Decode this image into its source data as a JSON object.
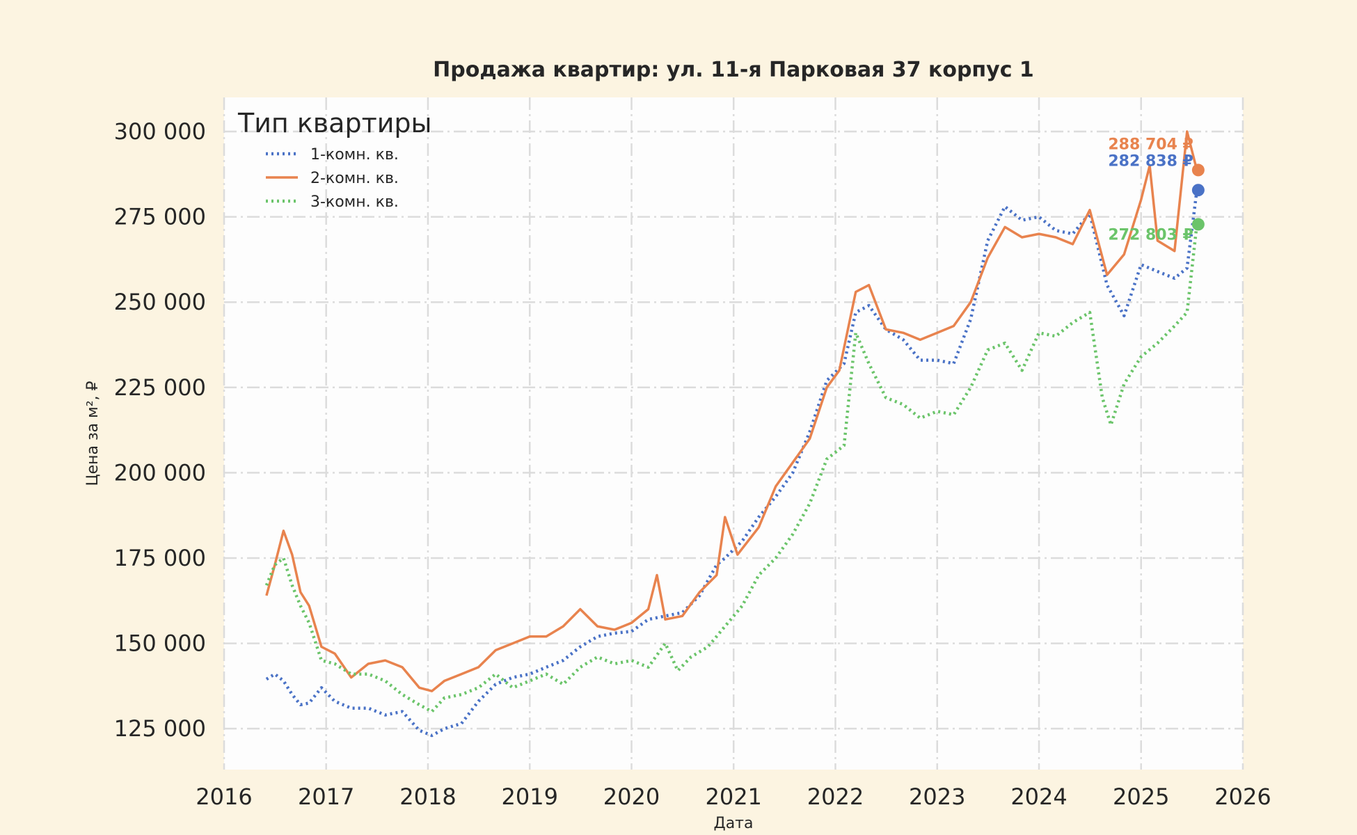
{
  "chart_data": {
    "type": "line",
    "title": "Продажа квартир: ул. 11-я Парковая 37 корпус 1",
    "xlabel": "Дата",
    "ylabel": "Цена за м², ₽",
    "xlim": [
      "2016-01-01",
      "2026-01-01"
    ],
    "ylim": [
      113000,
      310000
    ],
    "x_ticks": [
      "2016",
      "2017",
      "2018",
      "2019",
      "2020",
      "2021",
      "2022",
      "2023",
      "2024",
      "2025",
      "2026"
    ],
    "y_ticks": [
      125000,
      150000,
      175000,
      200000,
      225000,
      250000,
      275000,
      300000
    ],
    "y_tick_labels": [
      "125 000",
      "150 000",
      "175 000",
      "200 000",
      "225 000",
      "250 000",
      "275 000",
      "300 000"
    ],
    "grid": true,
    "legend": {
      "title": "Тип квартиры",
      "placement": "top-left"
    },
    "colors": {
      "plot_bg": "#fdfdfd",
      "page_bg": "#fcf4e1",
      "grid": "#dcdcdc"
    },
    "series": [
      {
        "name": "1-комн. кв.",
        "color": "#4a72c6",
        "style": "dotted",
        "end_value": 282838,
        "end_label": "282 838 ₽",
        "points": [
          [
            "2016-06-01",
            139500
          ],
          [
            "2016-07-01",
            141000
          ],
          [
            "2016-08-01",
            139000
          ],
          [
            "2016-09-01",
            135000
          ],
          [
            "2016-10-01",
            132000
          ],
          [
            "2016-11-01",
            132500
          ],
          [
            "2016-12-15",
            137000
          ],
          [
            "2017-02-01",
            133000
          ],
          [
            "2017-04-01",
            131000
          ],
          [
            "2017-06-01",
            131000
          ],
          [
            "2017-08-01",
            129000
          ],
          [
            "2017-10-01",
            130000
          ],
          [
            "2017-12-01",
            124500
          ],
          [
            "2018-01-15",
            123000
          ],
          [
            "2018-03-01",
            125000
          ],
          [
            "2018-05-01",
            126500
          ],
          [
            "2018-07-01",
            133000
          ],
          [
            "2018-09-01",
            138000
          ],
          [
            "2018-11-01",
            140000
          ],
          [
            "2019-01-01",
            141000
          ],
          [
            "2019-03-01",
            143000
          ],
          [
            "2019-05-01",
            145000
          ],
          [
            "2019-07-01",
            149000
          ],
          [
            "2019-09-01",
            152000
          ],
          [
            "2019-11-01",
            153000
          ],
          [
            "2020-01-01",
            153500
          ],
          [
            "2020-03-01",
            157000
          ],
          [
            "2020-05-01",
            158000
          ],
          [
            "2020-07-01",
            159000
          ],
          [
            "2020-09-01",
            164000
          ],
          [
            "2020-11-01",
            173000
          ],
          [
            "2020-12-01",
            175000
          ],
          [
            "2021-02-01",
            180000
          ],
          [
            "2021-04-01",
            187000
          ],
          [
            "2021-06-01",
            193000
          ],
          [
            "2021-08-01",
            200000
          ],
          [
            "2021-10-01",
            212000
          ],
          [
            "2021-12-01",
            227000
          ],
          [
            "2022-02-01",
            232000
          ],
          [
            "2022-03-15",
            247000
          ],
          [
            "2022-05-01",
            249000
          ],
          [
            "2022-07-01",
            242000
          ],
          [
            "2022-09-01",
            239000
          ],
          [
            "2022-11-01",
            233000
          ],
          [
            "2023-01-01",
            233000
          ],
          [
            "2023-03-01",
            232000
          ],
          [
            "2023-05-01",
            245000
          ],
          [
            "2023-07-01",
            268000
          ],
          [
            "2023-09-01",
            278000
          ],
          [
            "2023-11-01",
            274000
          ],
          [
            "2024-01-01",
            275000
          ],
          [
            "2024-03-01",
            271000
          ],
          [
            "2024-05-01",
            270000
          ],
          [
            "2024-07-01",
            276000
          ],
          [
            "2024-09-01",
            255000
          ],
          [
            "2024-11-01",
            246000
          ],
          [
            "2025-01-01",
            261000
          ],
          [
            "2025-03-01",
            259000
          ],
          [
            "2025-05-01",
            257000
          ],
          [
            "2025-06-15",
            260000
          ],
          [
            "2025-07-20",
            282838
          ]
        ]
      },
      {
        "name": "2-комн. кв.",
        "color": "#e8834e",
        "style": "solid",
        "end_value": 288704,
        "end_label": "288 704 ₽",
        "points": [
          [
            "2016-06-01",
            164000
          ],
          [
            "2016-07-01",
            173000
          ],
          [
            "2016-08-01",
            183000
          ],
          [
            "2016-09-01",
            176000
          ],
          [
            "2016-10-01",
            165000
          ],
          [
            "2016-11-01",
            161000
          ],
          [
            "2016-12-15",
            149000
          ],
          [
            "2017-02-01",
            147000
          ],
          [
            "2017-04-01",
            140000
          ],
          [
            "2017-06-01",
            144000
          ],
          [
            "2017-08-01",
            145000
          ],
          [
            "2017-10-01",
            143000
          ],
          [
            "2017-12-01",
            137000
          ],
          [
            "2018-01-15",
            136000
          ],
          [
            "2018-03-01",
            139000
          ],
          [
            "2018-05-01",
            141000
          ],
          [
            "2018-07-01",
            143000
          ],
          [
            "2018-09-01",
            148000
          ],
          [
            "2018-11-01",
            150000
          ],
          [
            "2019-01-01",
            152000
          ],
          [
            "2019-03-01",
            152000
          ],
          [
            "2019-05-01",
            155000
          ],
          [
            "2019-07-01",
            160000
          ],
          [
            "2019-09-01",
            155000
          ],
          [
            "2019-11-01",
            154000
          ],
          [
            "2020-01-01",
            156000
          ],
          [
            "2020-03-01",
            160000
          ],
          [
            "2020-04-01",
            170000
          ],
          [
            "2020-05-01",
            157000
          ],
          [
            "2020-07-01",
            158000
          ],
          [
            "2020-09-01",
            165000
          ],
          [
            "2020-11-01",
            170000
          ],
          [
            "2020-12-01",
            187000
          ],
          [
            "2021-01-15",
            176000
          ],
          [
            "2021-04-01",
            184000
          ],
          [
            "2021-06-01",
            196000
          ],
          [
            "2021-08-01",
            203000
          ],
          [
            "2021-10-01",
            210000
          ],
          [
            "2021-12-01",
            225000
          ],
          [
            "2022-01-15",
            230000
          ],
          [
            "2022-03-15",
            253000
          ],
          [
            "2022-05-01",
            255000
          ],
          [
            "2022-07-01",
            242000
          ],
          [
            "2022-09-01",
            241000
          ],
          [
            "2022-11-01",
            239000
          ],
          [
            "2023-01-01",
            241000
          ],
          [
            "2023-03-01",
            243000
          ],
          [
            "2023-05-01",
            250000
          ],
          [
            "2023-07-01",
            263000
          ],
          [
            "2023-09-01",
            272000
          ],
          [
            "2023-11-01",
            269000
          ],
          [
            "2024-01-01",
            270000
          ],
          [
            "2024-03-01",
            269000
          ],
          [
            "2024-05-01",
            267000
          ],
          [
            "2024-07-01",
            277000
          ],
          [
            "2024-09-01",
            258000
          ],
          [
            "2024-11-01",
            264000
          ],
          [
            "2025-01-01",
            280000
          ],
          [
            "2025-02-01",
            290000
          ],
          [
            "2025-03-01",
            268000
          ],
          [
            "2025-05-01",
            265000
          ],
          [
            "2025-06-15",
            300000
          ],
          [
            "2025-07-20",
            288704
          ]
        ]
      },
      {
        "name": "3-комн. кв.",
        "color": "#6bc46a",
        "style": "dotted",
        "end_value": 272803,
        "end_label": "272 803 ₽",
        "points": [
          [
            "2016-06-01",
            167000
          ],
          [
            "2016-07-01",
            173000
          ],
          [
            "2016-08-01",
            175000
          ],
          [
            "2016-09-01",
            167000
          ],
          [
            "2016-10-01",
            161000
          ],
          [
            "2016-11-01",
            156000
          ],
          [
            "2016-12-15",
            145000
          ],
          [
            "2017-02-01",
            144000
          ],
          [
            "2017-04-01",
            141000
          ],
          [
            "2017-06-01",
            141000
          ],
          [
            "2017-08-01",
            139000
          ],
          [
            "2017-10-01",
            135000
          ],
          [
            "2017-12-01",
            132000
          ],
          [
            "2018-01-15",
            130000
          ],
          [
            "2018-03-01",
            134000
          ],
          [
            "2018-05-01",
            135000
          ],
          [
            "2018-07-01",
            137000
          ],
          [
            "2018-09-01",
            141000
          ],
          [
            "2018-11-01",
            137000
          ],
          [
            "2019-01-01",
            139000
          ],
          [
            "2019-03-01",
            141000
          ],
          [
            "2019-05-01",
            138000
          ],
          [
            "2019-07-01",
            143000
          ],
          [
            "2019-09-01",
            146000
          ],
          [
            "2019-11-01",
            144000
          ],
          [
            "2020-01-01",
            145000
          ],
          [
            "2020-03-01",
            143000
          ],
          [
            "2020-05-01",
            150000
          ],
          [
            "2020-06-15",
            142000
          ],
          [
            "2020-08-01",
            146000
          ],
          [
            "2020-10-01",
            149000
          ],
          [
            "2020-12-01",
            155000
          ],
          [
            "2021-02-01",
            161000
          ],
          [
            "2021-04-01",
            170000
          ],
          [
            "2021-06-01",
            175000
          ],
          [
            "2021-08-01",
            182000
          ],
          [
            "2021-10-01",
            191000
          ],
          [
            "2021-12-01",
            204000
          ],
          [
            "2022-02-01",
            208000
          ],
          [
            "2022-03-15",
            241000
          ],
          [
            "2022-05-01",
            232000
          ],
          [
            "2022-07-01",
            222000
          ],
          [
            "2022-09-01",
            220000
          ],
          [
            "2022-11-01",
            216000
          ],
          [
            "2023-01-01",
            218000
          ],
          [
            "2023-03-01",
            217000
          ],
          [
            "2023-05-01",
            225000
          ],
          [
            "2023-07-01",
            236000
          ],
          [
            "2023-09-01",
            238000
          ],
          [
            "2023-11-01",
            230000
          ],
          [
            "2024-01-01",
            241000
          ],
          [
            "2024-03-01",
            240000
          ],
          [
            "2024-05-01",
            244000
          ],
          [
            "2024-07-01",
            247000
          ],
          [
            "2024-08-15",
            222000
          ],
          [
            "2024-09-15",
            214000
          ],
          [
            "2024-11-01",
            226000
          ],
          [
            "2025-01-01",
            234000
          ],
          [
            "2025-03-01",
            238000
          ],
          [
            "2025-05-01",
            243000
          ],
          [
            "2025-06-15",
            247000
          ],
          [
            "2025-07-20",
            272803
          ]
        ]
      }
    ]
  }
}
